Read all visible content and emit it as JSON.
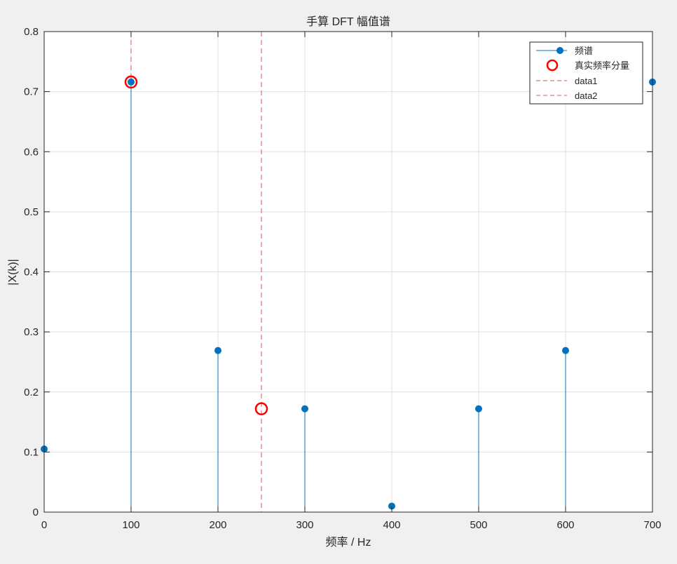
{
  "chart_data": {
    "type": "stem",
    "title": "手算 DFT 幅值谱",
    "xlabel": "频率 / Hz",
    "ylabel": "|X(k)|",
    "xlim": [
      0,
      700
    ],
    "ylim": [
      0,
      0.8
    ],
    "xticks": [
      0,
      100,
      200,
      300,
      400,
      500,
      600,
      700
    ],
    "xtick_labels": [
      "0",
      "100",
      "200",
      "300",
      "400",
      "500",
      "600",
      "700"
    ],
    "yticks": [
      0,
      0.1,
      0.2,
      0.3,
      0.4,
      0.5,
      0.6,
      0.7,
      0.8
    ],
    "ytick_labels": [
      "0",
      "0.1",
      "0.2",
      "0.3",
      "0.4",
      "0.5",
      "0.6",
      "0.7",
      "0.8"
    ],
    "grid": true,
    "legend_position": "top-right",
    "series": [
      {
        "name": "频谱",
        "kind": "stem",
        "color": "#0072bd",
        "x": [
          0,
          100,
          200,
          300,
          400,
          500,
          600,
          700
        ],
        "y": [
          0.105,
          0.716,
          0.269,
          0.172,
          0.01,
          0.172,
          0.269,
          0.716
        ]
      },
      {
        "name": "真实频率分量",
        "kind": "marker-circle",
        "color": "#ff0000",
        "x": [
          100,
          250
        ],
        "y": [
          0.716,
          0.172
        ]
      },
      {
        "name": "data1",
        "kind": "vline-dashed",
        "color": "#d9534f",
        "x": [
          100
        ]
      },
      {
        "name": "data2",
        "kind": "vline-dashed",
        "color": "#d9534f",
        "x": [
          250
        ]
      }
    ]
  }
}
